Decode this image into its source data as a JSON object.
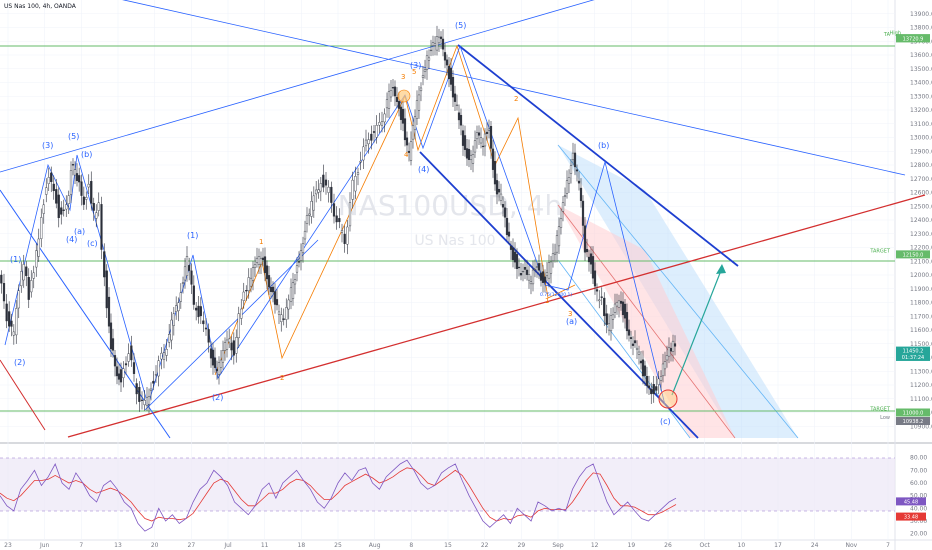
{
  "header": {
    "symbol_line": "US Nas 100, 4h, OANDA"
  },
  "watermark": {
    "symbol": "NAS100USD, 4h",
    "description": "US Nas 100"
  },
  "colors": {
    "candle": "#2a2e39",
    "wave_blue": "#2962ff",
    "wave_orange": "#f57c00",
    "channel_blue": "#1e3fd0",
    "trend_red": "#d32f2f",
    "horizontal_green": "#66bb6a",
    "projection_green": "#26a69a",
    "rsi_line": "#7e57c2",
    "rsi_ma": "#e53935",
    "rsi_band": "#ede7f6"
  },
  "chart_data": [
    {
      "type": "line",
      "name": "price",
      "ylim": [
        10800,
        14000
      ],
      "x_tick_labels": [
        "23",
        "Jun",
        "7",
        "13",
        "20",
        "27",
        "Jul",
        "11",
        "18",
        "25",
        "Aug",
        "8",
        "15",
        "22",
        "29",
        "Sep",
        "12",
        "19",
        "26",
        "Oct",
        "10",
        "17",
        "24",
        "Nov",
        "7"
      ],
      "y_tick_labels": [
        "13900.0",
        "13800.0",
        "13700.0",
        "13600.0",
        "13500.0",
        "13400.0",
        "13300.0",
        "13200.0",
        "13100.0",
        "13000.0",
        "12900.0",
        "12800.0",
        "12700.0",
        "12600.0",
        "12500.0",
        "12400.0",
        "12300.0",
        "12200.0",
        "12100.0",
        "12000.0",
        "11900.0",
        "11800.0",
        "11700.0",
        "11600.0",
        "11500.0",
        "11400.0",
        "11300.0",
        "11200.0",
        "11100.0",
        "11000.0",
        "10900.0"
      ],
      "series": [
        {
          "x": [
            0,
            8,
            15,
            20,
            25,
            30,
            35,
            40,
            45,
            50,
            55,
            60,
            65,
            70,
            72,
            78,
            85,
            90,
            95,
            100,
            103,
            108,
            112,
            118,
            122,
            130,
            138,
            146,
            152,
            160,
            168,
            175,
            182,
            188,
            195,
            202,
            210,
            216,
            222,
            228,
            235,
            240,
            245,
            250,
            256,
            262,
            268,
            274,
            280,
            285,
            290,
            296,
            302,
            308,
            315,
            322,
            330,
            338,
            346,
            354,
            362,
            370,
            378,
            386,
            392,
            398,
            404,
            410,
            416,
            422,
            428,
            434,
            440,
            446,
            452,
            458,
            462,
            466,
            472,
            478,
            484,
            490,
            496,
            502,
            508,
            514,
            520,
            526,
            532,
            538,
            544,
            550,
            556,
            562,
            568,
            574,
            580,
            586,
            592,
            598,
            603,
            608,
            614,
            620,
            626,
            632,
            638,
            644,
            650,
            655,
            660,
            664,
            668,
            672,
            676
          ],
          "y": [
            12000,
            11700,
            11550,
            11900,
            12100,
            11850,
            12050,
            12300,
            12550,
            12750,
            12650,
            12450,
            12500,
            12600,
            12800,
            12700,
            12550,
            12650,
            12450,
            12500,
            12200,
            11800,
            11500,
            11300,
            11250,
            11450,
            11150,
            11050,
            11200,
            11350,
            11500,
            11700,
            11900,
            12100,
            11800,
            11700,
            11500,
            11300,
            11350,
            11550,
            11450,
            11700,
            11850,
            11950,
            12050,
            12150,
            12000,
            11850,
            11700,
            11650,
            11800,
            12000,
            12200,
            12400,
            12550,
            12700,
            12600,
            12400,
            12250,
            12650,
            12850,
            13000,
            13050,
            13200,
            13350,
            13300,
            13100,
            12850,
            13150,
            13400,
            13600,
            13650,
            13720,
            13600,
            13400,
            13200,
            13050,
            12900,
            12850,
            13000,
            12950,
            13100,
            12650,
            12550,
            12300,
            12150,
            12050,
            12000,
            11950,
            12100,
            11950,
            12050,
            12150,
            12450,
            12700,
            12850,
            12650,
            12200,
            12100,
            11850,
            11800,
            11600,
            11700,
            11850,
            11700,
            11500,
            11450,
            11300,
            11200,
            11150,
            11250,
            11350,
            11450,
            11480,
            11480
          ]
        }
      ],
      "levels": [
        {
          "label": "TA",
          "price": 13722.7,
          "tag": "13722.7"
        },
        {
          "label": "High",
          "price": 13720.9,
          "tag": "13720.9"
        },
        {
          "label": "TARGET",
          "price": 12150.0,
          "tag": "12150.0"
        },
        {
          "label": "",
          "price": 11450.2,
          "tag": "11450.2"
        },
        {
          "label": "",
          "price": 11404.0,
          "tag": "01:37:24"
        },
        {
          "label": "TARGET",
          "price": 11000.0,
          "tag": "11000.0"
        },
        {
          "label": "Low",
          "price": 10938.2,
          "tag": "10938.2"
        }
      ],
      "fib_label": "0.75(12000.1)",
      "wave_labels_blue": [
        "(1)",
        "(2)",
        "(3)",
        "(4)",
        "(5)",
        "(a)",
        "(b)",
        "(c)",
        "(1)",
        "(2)",
        "(3)",
        "(4)",
        "(5)",
        "(a)",
        "(b)",
        "(c)"
      ],
      "wave_labels_orange": [
        "1",
        "2",
        "3",
        "4",
        "5",
        "1",
        "2",
        "3",
        "4",
        "5"
      ]
    },
    {
      "type": "line",
      "name": "rsi",
      "ylim": [
        15,
        90
      ],
      "y_tick_labels": [
        "80.00",
        "70.00",
        "60.00",
        "50.00",
        "40.00",
        "30.00",
        "20.00"
      ],
      "value_tags": [
        "45.48",
        "33.48"
      ],
      "series": [
        {
          "name": "RSI",
          "values": [
            50,
            42,
            38,
            55,
            62,
            70,
            58,
            65,
            75,
            60,
            55,
            68,
            60,
            50,
            45,
            58,
            62,
            55,
            45,
            40,
            28,
            22,
            25,
            40,
            30,
            35,
            28,
            32,
            45,
            55,
            60,
            70,
            65,
            58,
            45,
            40,
            35,
            42,
            55,
            60,
            48,
            60,
            65,
            70,
            62,
            55,
            45,
            40,
            48,
            60,
            68,
            62,
            70,
            72,
            60,
            55,
            65,
            70,
            75,
            78,
            70,
            60,
            55,
            58,
            68,
            72,
            75,
            62,
            50,
            40,
            30,
            25,
            30,
            35,
            28,
            40,
            35,
            30,
            45,
            42,
            38,
            40,
            38,
            55,
            65,
            72,
            75,
            60,
            45,
            35,
            40,
            45,
            38,
            32,
            30,
            35,
            40,
            45,
            48
          ]
        },
        {
          "name": "MA",
          "values": [
            52,
            48,
            46,
            50,
            56,
            62,
            62,
            63,
            66,
            63,
            60,
            62,
            60,
            55,
            52,
            54,
            56,
            54,
            50,
            45,
            38,
            32,
            30,
            33,
            32,
            32,
            31,
            32,
            36,
            44,
            52,
            60,
            63,
            61,
            54,
            47,
            42,
            42,
            47,
            52,
            52,
            55,
            60,
            63,
            62,
            58,
            52,
            47,
            47,
            52,
            58,
            61,
            64,
            67,
            64,
            60,
            62,
            65,
            69,
            72,
            71,
            66,
            60,
            58,
            62,
            66,
            70,
            66,
            58,
            49,
            40,
            33,
            30,
            32,
            31,
            34,
            35,
            33,
            38,
            40,
            39,
            39,
            39,
            45,
            53,
            62,
            68,
            67,
            58,
            48,
            42,
            42,
            41,
            38,
            35,
            35,
            37,
            40,
            43
          ]
        }
      ]
    }
  ]
}
